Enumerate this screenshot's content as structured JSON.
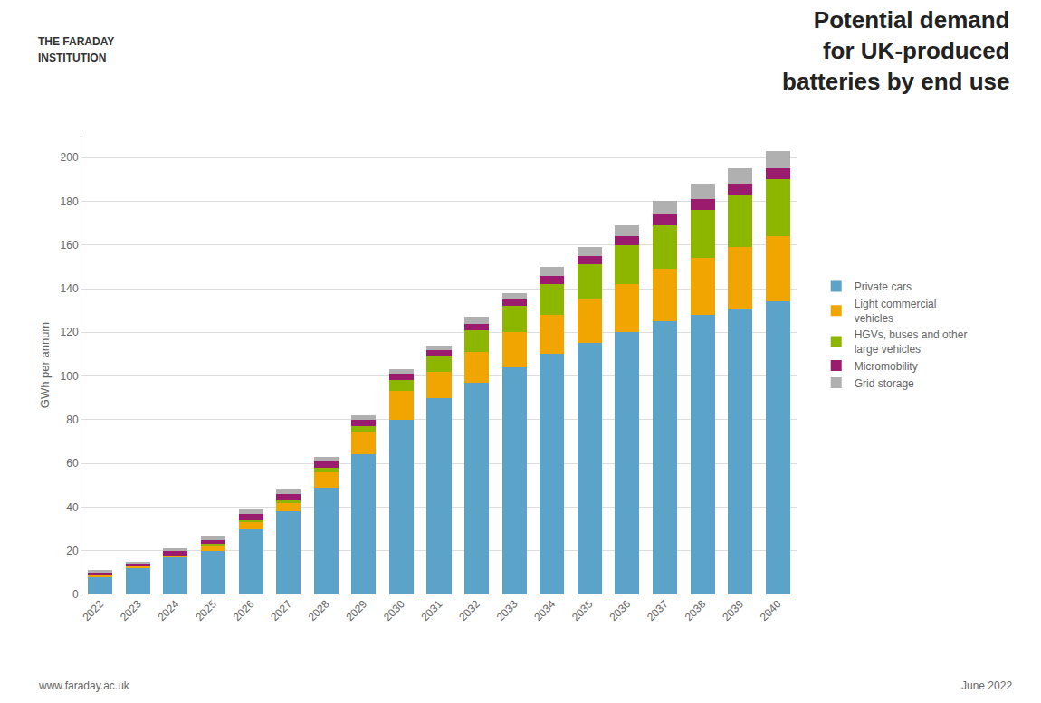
{
  "chart_data": {
    "type": "bar",
    "title": "Potential demand\nfor UK-produced\nbatteries by end use",
    "ylabel": "GWh per annum",
    "categories": [
      "2022",
      "2023",
      "2024",
      "2025",
      "2026",
      "2027",
      "2028",
      "2029",
      "2030",
      "2031",
      "2032",
      "2033",
      "2034",
      "2035",
      "2036",
      "2037",
      "2038",
      "2039",
      "2040"
    ],
    "series": [
      {
        "name": "Private cars",
        "color": "#5ba3c9",
        "values": [
          8,
          12,
          17,
          20,
          30,
          38,
          49,
          64,
          80,
          90,
          97,
          104,
          110,
          115,
          120,
          125,
          128,
          131,
          134
        ]
      },
      {
        "name": "Light commercial\nvehicles",
        "color": "#f0a500",
        "values": [
          1,
          1,
          1,
          2,
          3,
          4,
          7,
          10,
          13,
          12,
          14,
          16,
          18,
          20,
          22,
          24,
          26,
          28,
          30
        ]
      },
      {
        "name": "HGVs, buses and other\nlarge vehicles",
        "color": "#8db600",
        "values": [
          0,
          0,
          0,
          1,
          1,
          1,
          2,
          3,
          5,
          7,
          10,
          12,
          14,
          16,
          18,
          20,
          22,
          24,
          26
        ]
      },
      {
        "name": "Micromobility",
        "color": "#9b1b6e",
        "values": [
          1,
          1,
          2,
          2,
          3,
          3,
          3,
          3,
          3,
          3,
          3,
          3,
          4,
          4,
          4,
          5,
          5,
          5,
          5
        ]
      },
      {
        "name": "Grid storage",
        "color": "#b0b0b0",
        "values": [
          1,
          1,
          1,
          2,
          2,
          2,
          2,
          2,
          2,
          2,
          3,
          3,
          4,
          4,
          5,
          6,
          7,
          7,
          8
        ]
      }
    ],
    "stacked": true,
    "ylim": [
      0,
      210
    ],
    "yticks": [
      0,
      20,
      40,
      60,
      80,
      100,
      120,
      140,
      160,
      180,
      200
    ],
    "grid": true,
    "legend": "right",
    "annotations": [
      "THE FARADAY",
      "INSTITUTION",
      "www.faraday.ac.uk",
      "June 2022"
    ]
  }
}
